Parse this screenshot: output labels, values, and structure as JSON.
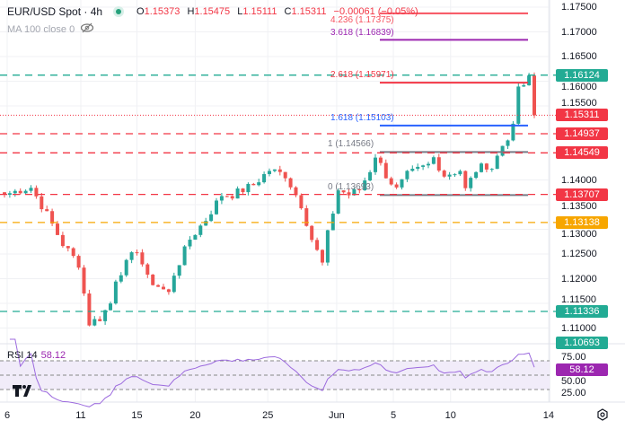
{
  "header": {
    "symbol": "EUR/USD Spot · 4h",
    "o_label": "O",
    "o": "1.15373",
    "h_label": "H",
    "h": "1.15475",
    "l_label": "L",
    "l": "1.15111",
    "c_label": "C",
    "c": "1.15311",
    "change": "−0.00061 (−0.05%)"
  },
  "ma": {
    "label": "MA 100 close 0"
  },
  "rsi": {
    "label": "RSI 14",
    "value": "58.12",
    "ticks": [
      "75.00",
      "50.00",
      "25.00"
    ]
  },
  "fib": [
    {
      "label": "4.236 (1.17375)",
      "price": 1.17375,
      "color": "#f7525f"
    },
    {
      "label": "3.618 (1.16839)",
      "price": 1.16839,
      "color": "#9c27b0"
    },
    {
      "label": "2.618 (1.15971)",
      "price": 1.15971,
      "color": "#f23645"
    },
    {
      "label": "1.618 (1.15103)",
      "price": 1.15103,
      "color": "#2962ff"
    },
    {
      "label": "1 (1.14566)",
      "price": 1.14566,
      "color": "#787b86"
    },
    {
      "label": "0 (1.13693)",
      "price": 1.13693,
      "color": "#787b86"
    }
  ],
  "levels": [
    {
      "label": "1.16124",
      "price": 1.16124,
      "color": "#22ab94",
      "dash": true
    },
    {
      "label": "1.15311",
      "price": 1.15311,
      "color": "#f23645",
      "dash": false
    },
    {
      "label": "1.14937",
      "price": 1.14937,
      "color": "#f23645",
      "dash": true
    },
    {
      "label": "1.14549",
      "price": 1.14549,
      "color": "#f23645",
      "dash": true
    },
    {
      "label": "1.13707",
      "price": 1.13707,
      "color": "#f23645",
      "dash": true
    },
    {
      "label": "1.13138",
      "price": 1.13138,
      "color": "#f7a600",
      "dash": true
    },
    {
      "label": "1.11336",
      "price": 1.11336,
      "color": "#22ab94",
      "dash": true
    },
    {
      "label": "1.10693",
      "price": 1.10693,
      "color": "#22ab94",
      "dash": false,
      "noline": true
    }
  ],
  "price_ticks": [
    "1.17500",
    "1.17000",
    "1.16500",
    "1.16000",
    "1.15500",
    "1.14000",
    "1.13500",
    "1.13000",
    "1.12500",
    "1.12000",
    "1.11500",
    "1.11000"
  ],
  "dates": [
    {
      "label": "6",
      "idx": 0.5
    },
    {
      "label": "11",
      "idx": 14.4
    },
    {
      "label": "15",
      "idx": 25
    },
    {
      "label": "20",
      "idx": 36
    },
    {
      "label": "25",
      "idx": 49.7
    },
    {
      "label": "Jun",
      "idx": 62.7
    },
    {
      "label": "5",
      "idx": 73.4
    },
    {
      "label": "10",
      "idx": 84.2
    },
    {
      "label": "14",
      "idx": 102.7
    }
  ],
  "logo": "17",
  "chart_data": {
    "type": "candlestick",
    "candles": 101,
    "close_keypoints": [
      [
        0,
        1.137
      ],
      [
        3,
        1.138
      ],
      [
        5,
        1.1385
      ],
      [
        8,
        1.133
      ],
      [
        11,
        1.127
      ],
      [
        14,
        1.123
      ],
      [
        16,
        1.111
      ],
      [
        18,
        1.112
      ],
      [
        20,
        1.115
      ],
      [
        21,
        1.12
      ],
      [
        23,
        1.123
      ],
      [
        25,
        1.126
      ],
      [
        27,
        1.12
      ],
      [
        31,
        1.117
      ],
      [
        32,
        1.121
      ],
      [
        35,
        1.128
      ],
      [
        38,
        1.132
      ],
      [
        41,
        1.137
      ],
      [
        43,
        1.137
      ],
      [
        47,
        1.139
      ],
      [
        50,
        1.142
      ],
      [
        53,
        1.141
      ],
      [
        56,
        1.135
      ],
      [
        58,
        1.128
      ],
      [
        60,
        1.123
      ],
      [
        61,
        1.129
      ],
      [
        63,
        1.138
      ],
      [
        65,
        1.137
      ],
      [
        67,
        1.138
      ],
      [
        69,
        1.142
      ],
      [
        70,
        1.145
      ],
      [
        72,
        1.141
      ],
      [
        74,
        1.138
      ],
      [
        76,
        1.141
      ],
      [
        80,
        1.143
      ],
      [
        81,
        1.1445
      ],
      [
        83,
        1.141
      ],
      [
        86,
        1.142
      ],
      [
        87,
        1.138
      ],
      [
        89,
        1.142
      ],
      [
        91,
        1.143
      ],
      [
        92,
        1.1425
      ],
      [
        94,
        1.147
      ],
      [
        96,
        1.1505
      ],
      [
        97,
        1.159
      ],
      [
        98,
        1.1585
      ],
      [
        99,
        1.161
      ],
      [
        100,
        1.1531
      ]
    ],
    "ylim": [
      1.105,
      1.177
    ],
    "up_color": "#26a69a",
    "down_color": "#ef5350"
  }
}
